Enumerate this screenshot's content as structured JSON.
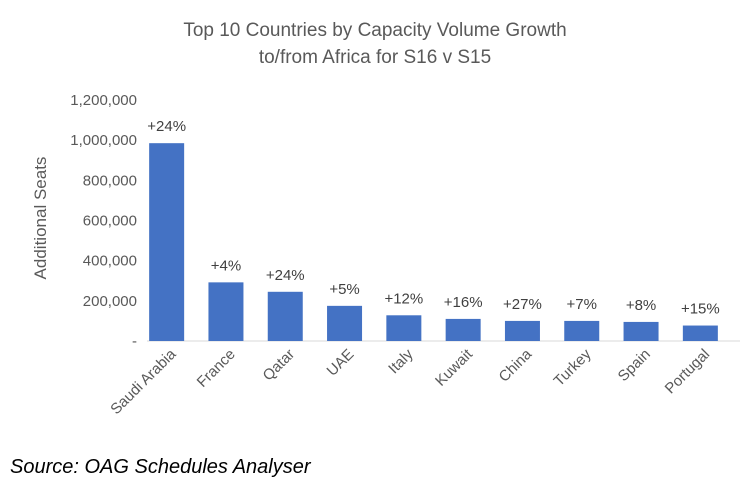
{
  "chart_data": {
    "type": "bar",
    "title_lines": [
      "Top 10 Countries by Capacity Volume Growth",
      "to/from Africa for S16 v S15"
    ],
    "ylabel": "Additional Seats",
    "xlabel": "",
    "ylim": [
      0,
      1200000
    ],
    "y_ticks": [
      0,
      200000,
      400000,
      600000,
      800000,
      1000000,
      1200000
    ],
    "y_tick_labels": [
      "-",
      "200,000",
      "400,000",
      "600,000",
      "800,000",
      "1,000,000",
      "1,200,000"
    ],
    "categories": [
      "Saudi Arabia",
      "France",
      "Qatar",
      "UAE",
      "Italy",
      "Kuwait",
      "China",
      "Turkey",
      "Spain",
      "Portugal"
    ],
    "values": [
      985000,
      292000,
      245000,
      175000,
      128000,
      110000,
      100000,
      100000,
      95000,
      77000
    ],
    "data_labels": [
      "+24%",
      "+4%",
      "+24%",
      "+5%",
      "+12%",
      "+16%",
      "+27%",
      "+7%",
      "+8%",
      "+15%"
    ],
    "bar_color": "#4472C4",
    "grid": false,
    "legend": "none"
  },
  "source": "Source: OAG Schedules Analyser"
}
